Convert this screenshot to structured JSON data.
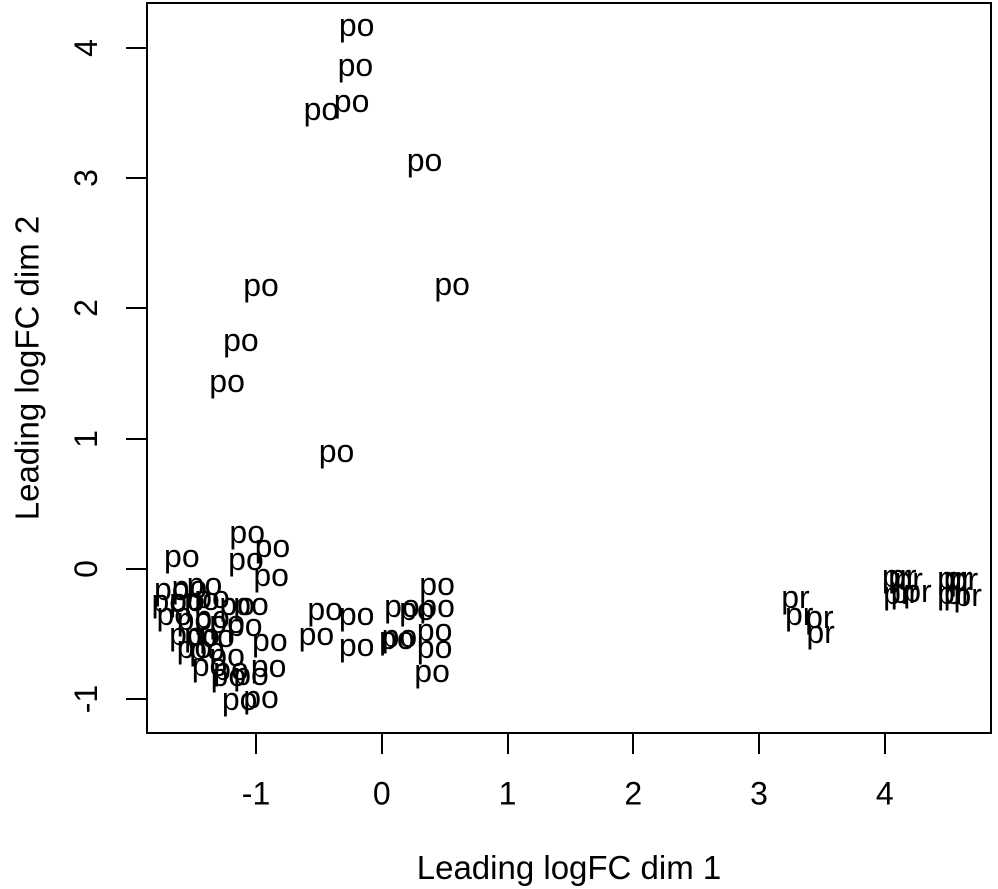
{
  "figure": {
    "background": "#ffffff",
    "text_color": "#000000",
    "axis_color": "#000000"
  },
  "chart_data": {
    "type": "scatter",
    "title": "",
    "xlabel": "Leading logFC dim 1",
    "ylabel": "Leading logFC dim 2",
    "point_marker": "text-label",
    "grid": false,
    "legend_position": "none",
    "xlim": [
      -1.875,
      4.853
    ],
    "ylim": [
      -1.27,
      4.354
    ],
    "x_ticks": [
      -1,
      0,
      1,
      2,
      3,
      4
    ],
    "y_ticks": [
      -1,
      0,
      1,
      2,
      3,
      4
    ],
    "series": [
      {
        "name": "po",
        "label": "po",
        "points": [
          [
            -0.2,
            4.15
          ],
          [
            -0.21,
            3.84
          ],
          [
            -0.48,
            3.5
          ],
          [
            -0.24,
            3.56
          ],
          [
            0.34,
            3.11
          ],
          [
            -0.96,
            2.15
          ],
          [
            0.56,
            2.16
          ],
          [
            -1.12,
            1.73
          ],
          [
            -1.23,
            1.41
          ],
          [
            -0.36,
            0.87
          ],
          [
            -1.07,
            0.25
          ],
          [
            -1.59,
            0.07
          ],
          [
            -1.08,
            0.04
          ],
          [
            -0.87,
            0.14
          ],
          [
            -0.88,
            -0.08
          ],
          [
            -1.67,
            -0.19
          ],
          [
            -1.53,
            -0.17
          ],
          [
            -1.41,
            -0.15
          ],
          [
            -1.69,
            -0.28
          ],
          [
            -1.55,
            -0.27
          ],
          [
            -1.43,
            -0.26
          ],
          [
            -1.35,
            -0.25
          ],
          [
            -1.15,
            -0.3
          ],
          [
            -1.04,
            -0.3
          ],
          [
            -1.65,
            -0.38
          ],
          [
            -1.49,
            -0.42
          ],
          [
            -1.35,
            -0.4
          ],
          [
            -1.23,
            -0.44
          ],
          [
            -1.09,
            -0.46
          ],
          [
            -1.55,
            -0.53
          ],
          [
            -1.43,
            -0.54
          ],
          [
            -1.31,
            -0.55
          ],
          [
            -1.49,
            -0.63
          ],
          [
            -1.39,
            -0.65
          ],
          [
            -1.23,
            -0.69
          ],
          [
            -1.37,
            -0.77
          ],
          [
            -1.2,
            -0.8
          ],
          [
            -1.22,
            -0.85
          ],
          [
            -1.04,
            -0.84
          ],
          [
            -0.9,
            -0.78
          ],
          [
            -1.13,
            -1.03
          ],
          [
            -0.96,
            -1.02
          ],
          [
            -0.45,
            -0.34
          ],
          [
            -0.2,
            -0.38
          ],
          [
            -0.52,
            -0.53
          ],
          [
            -0.2,
            -0.62
          ],
          [
            -0.89,
            -0.58
          ],
          [
            0.12,
            -0.56
          ],
          [
            0.44,
            -0.15
          ],
          [
            0.16,
            -0.32
          ],
          [
            0.28,
            -0.34
          ],
          [
            0.44,
            -0.32
          ],
          [
            0.14,
            -0.55
          ],
          [
            0.42,
            -0.5
          ],
          [
            0.42,
            -0.63
          ],
          [
            0.4,
            -0.82
          ]
        ]
      },
      {
        "name": "pr",
        "label": "pr",
        "points": [
          [
            3.29,
            -0.25
          ],
          [
            3.32,
            -0.38
          ],
          [
            3.48,
            -0.4
          ],
          [
            3.49,
            -0.52
          ],
          [
            4.09,
            -0.09
          ],
          [
            4.14,
            -0.09
          ],
          [
            4.19,
            -0.11
          ],
          [
            4.1,
            -0.22
          ],
          [
            4.16,
            -0.21
          ],
          [
            4.26,
            -0.2
          ],
          [
            4.53,
            -0.1
          ],
          [
            4.58,
            -0.1
          ],
          [
            4.63,
            -0.11
          ],
          [
            4.53,
            -0.22
          ],
          [
            4.58,
            -0.22
          ],
          [
            4.66,
            -0.23
          ]
        ]
      }
    ]
  }
}
